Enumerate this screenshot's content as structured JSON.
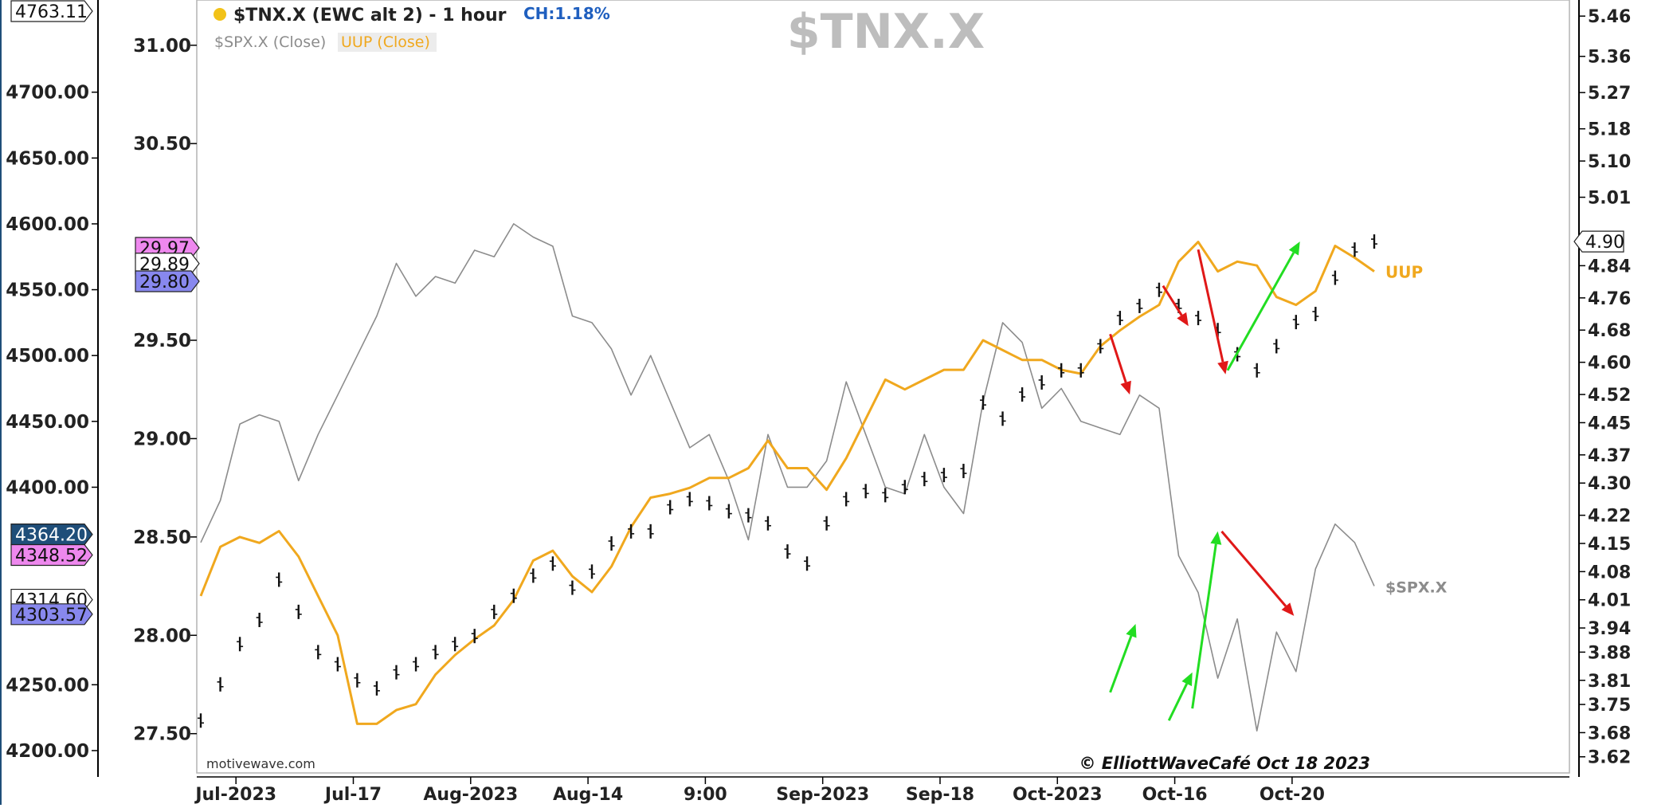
{
  "header": {
    "title": "$TNX.X (EWC alt 2) - 1 hour",
    "change": "CH:1.18%",
    "watermark": "$TNX.X",
    "legend_spx": "$SPX.X (Close)",
    "legend_uup": "UUP (Close)",
    "brand": "motivewave.com",
    "copyright": "© ElliottWaveCafé Oct 18 2023"
  },
  "colors": {
    "tnx": "#111111",
    "spx": "#8c8c8c",
    "uup": "#f0a81e",
    "up_arrow": "#22dd22",
    "down_arrow": "#e01818",
    "title_dot": "#f2c218",
    "change": "#1f5fbf",
    "watermark": "#bdbdbd",
    "tag_pink": "#ee88ee",
    "tag_blue": "#8888ee",
    "tag_navy": "#1f4e79"
  },
  "chart_data": {
    "type": "line",
    "x_ticks": [
      "Jul-2023",
      "Jul-17",
      "Aug-2023",
      "Aug-14",
      "9:00",
      "Sep-2023",
      "Sep-18",
      "Oct-2023",
      "Oct-16",
      "Oct-20"
    ],
    "axes": {
      "far_left": {
        "series": "$SPX.X",
        "ticks": [
          "4700.00",
          "4650.00",
          "4600.00",
          "4550.00",
          "4500.00",
          "4450.00",
          "4400.00",
          "4250.00",
          "4200.00"
        ],
        "range": [
          4180,
          4770
        ]
      },
      "left": {
        "series": "UUP",
        "ticks": [
          "31.00",
          "30.50",
          "29.50",
          "29.00",
          "28.50",
          "28.00",
          "27.50"
        ],
        "range": [
          27.28,
          31.23
        ]
      },
      "right": {
        "series": "$TNX.X",
        "ticks": [
          "5.46",
          "5.36",
          "5.27",
          "5.18",
          "5.10",
          "5.01",
          "4.84",
          "4.76",
          "4.68",
          "4.60",
          "4.52",
          "4.45",
          "4.37",
          "4.30",
          "4.22",
          "4.15",
          "4.08",
          "4.01",
          "3.94",
          "3.88",
          "3.81",
          "3.75",
          "3.68",
          "3.62"
        ],
        "range": [
          3.57,
          5.5
        ]
      }
    },
    "value_tags": {
      "far_left": [
        {
          "label": "4763.11",
          "style": "white"
        },
        {
          "label": "4364.20",
          "style": "navy"
        },
        {
          "label": "4348.52",
          "style": "pink"
        },
        {
          "label": "4314.60",
          "style": "white"
        },
        {
          "label": "4303.57",
          "style": "blue"
        }
      ],
      "left": [
        {
          "label": "29.97",
          "style": "pink"
        },
        {
          "label": "29.89",
          "style": "white"
        },
        {
          "label": "29.80",
          "style": "blue"
        }
      ],
      "right": [
        {
          "label": "4.90",
          "style": "white"
        }
      ]
    },
    "series": [
      {
        "name": "$SPX.X",
        "axis": "far_left",
        "style": "line",
        "x": [
          0,
          10,
          20,
          30,
          40,
          50,
          60,
          70,
          80,
          90,
          100,
          110,
          120,
          130,
          140,
          150,
          160,
          170,
          180,
          190,
          200,
          210,
          220,
          230,
          240,
          250,
          260,
          270,
          280,
          290,
          300,
          310,
          320,
          330,
          340,
          350,
          360,
          370,
          380,
          390,
          400,
          410,
          420,
          430,
          440,
          450,
          460,
          470,
          480,
          490,
          500,
          510,
          520,
          530,
          540,
          550,
          560,
          570,
          580,
          590,
          600
        ],
        "values": [
          4358,
          4390,
          4448,
          4455,
          4450,
          4405,
          4440,
          4470,
          4500,
          4530,
          4570,
          4545,
          4560,
          4555,
          4580,
          4575,
          4600,
          4590,
          4583,
          4530,
          4525,
          4505,
          4470,
          4500,
          4465,
          4430,
          4440,
          4405,
          4360,
          4440,
          4400,
          4400,
          4420,
          4480,
          4440,
          4400,
          4395,
          4440,
          4400,
          4380,
          4465,
          4525,
          4510,
          4460,
          4475,
          4450,
          4445,
          4440,
          4470,
          4460,
          4348,
          4320,
          4255,
          4300,
          4215,
          4290,
          4260,
          4338,
          4372,
          4358,
          4325
        ]
      },
      {
        "name": "UUP",
        "axis": "left",
        "style": "line",
        "x": [
          0,
          10,
          20,
          30,
          40,
          50,
          60,
          70,
          80,
          90,
          100,
          110,
          120,
          130,
          140,
          150,
          160,
          170,
          180,
          190,
          200,
          210,
          220,
          230,
          240,
          250,
          260,
          270,
          280,
          290,
          300,
          310,
          320,
          330,
          340,
          350,
          360,
          370,
          380,
          390,
          400,
          410,
          420,
          430,
          440,
          450,
          460,
          470,
          480,
          490,
          500,
          510,
          520,
          530,
          540,
          550,
          560,
          570,
          580,
          590,
          600
        ],
        "values": [
          28.2,
          28.45,
          28.5,
          28.47,
          28.53,
          28.4,
          28.2,
          28.0,
          27.55,
          27.55,
          27.62,
          27.65,
          27.8,
          27.9,
          27.98,
          28.05,
          28.18,
          28.38,
          28.43,
          28.3,
          28.22,
          28.35,
          28.55,
          28.7,
          28.72,
          28.75,
          28.8,
          28.8,
          28.85,
          28.99,
          28.85,
          28.85,
          28.74,
          28.9,
          29.1,
          29.3,
          29.25,
          29.3,
          29.35,
          29.35,
          29.5,
          29.45,
          29.4,
          29.4,
          29.35,
          29.33,
          29.47,
          29.55,
          29.62,
          29.68,
          29.9,
          30.0,
          29.85,
          29.9,
          29.88,
          29.72,
          29.68,
          29.75,
          29.98,
          29.92,
          29.85
        ]
      },
      {
        "name": "$TNX.X",
        "axis": "right",
        "style": "bars",
        "x": [
          0,
          10,
          20,
          30,
          40,
          50,
          60,
          70,
          80,
          90,
          100,
          110,
          120,
          130,
          140,
          150,
          160,
          170,
          180,
          190,
          200,
          210,
          220,
          230,
          240,
          250,
          260,
          270,
          280,
          290,
          300,
          310,
          320,
          330,
          340,
          350,
          360,
          370,
          380,
          390,
          400,
          410,
          420,
          430,
          440,
          450,
          460,
          470,
          480,
          490,
          500,
          510,
          520,
          530,
          540,
          550,
          560,
          570,
          580,
          590,
          600
        ],
        "values": [
          3.71,
          3.8,
          3.9,
          3.96,
          4.06,
          3.98,
          3.88,
          3.85,
          3.81,
          3.79,
          3.83,
          3.85,
          3.88,
          3.9,
          3.92,
          3.98,
          4.02,
          4.07,
          4.1,
          4.04,
          4.08,
          4.15,
          4.18,
          4.18,
          4.24,
          4.26,
          4.25,
          4.23,
          4.22,
          4.2,
          4.13,
          4.1,
          4.2,
          4.26,
          4.28,
          4.27,
          4.29,
          4.31,
          4.32,
          4.33,
          4.5,
          4.46,
          4.52,
          4.55,
          4.58,
          4.58,
          4.64,
          4.71,
          4.74,
          4.78,
          4.74,
          4.71,
          4.68,
          4.62,
          4.58,
          4.64,
          4.7,
          4.72,
          4.81,
          4.88,
          4.9
        ]
      }
    ],
    "annotations": [
      {
        "label": "UUP",
        "series": "UUP"
      },
      {
        "label": "$SPX.X",
        "series": "$SPX.X"
      }
    ],
    "arrows": [
      {
        "color": "down",
        "from": [
          465,
          4.67
        ],
        "to": [
          475,
          4.52
        ]
      },
      {
        "color": "down",
        "from": [
          492,
          4.79
        ],
        "to": [
          505,
          4.69
        ]
      },
      {
        "color": "down",
        "from": [
          510,
          4.88
        ],
        "to": [
          524,
          4.57
        ]
      },
      {
        "color": "up",
        "from": [
          525,
          4.58
        ],
        "to": [
          562,
          4.9
        ]
      },
      {
        "color": "up",
        "from": [
          465,
          3.78
        ],
        "to": [
          478,
          3.95
        ]
      },
      {
        "color": "up",
        "from": [
          495,
          3.71
        ],
        "to": [
          507,
          3.83
        ]
      },
      {
        "color": "up",
        "from": [
          507,
          3.74
        ],
        "to": [
          520,
          4.18
        ]
      },
      {
        "color": "down",
        "from": [
          522,
          4.18
        ],
        "to": [
          559,
          3.97
        ]
      }
    ]
  }
}
